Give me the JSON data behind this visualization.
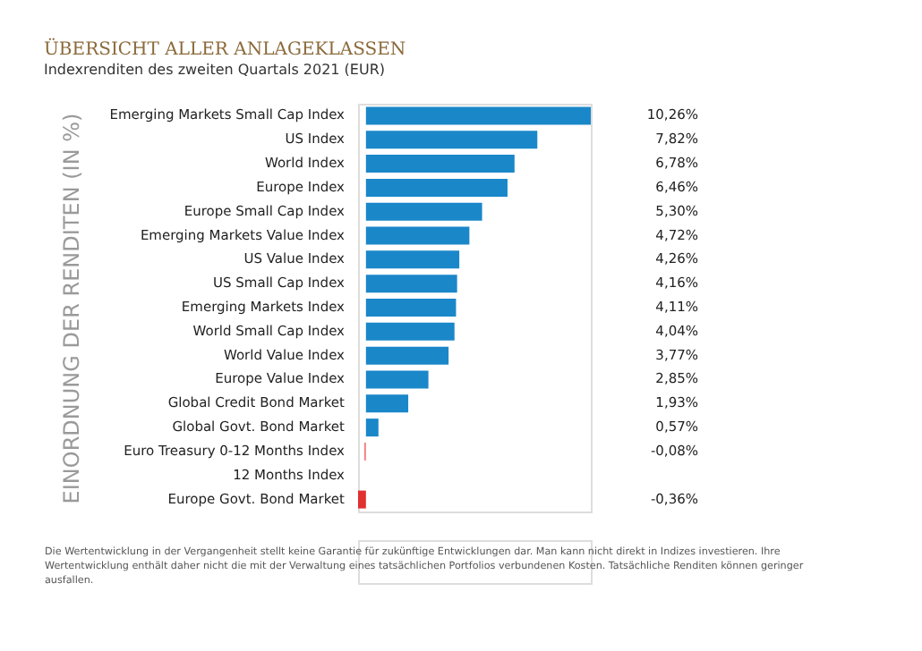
{
  "chart_data": {
    "type": "bar",
    "orientation": "horizontal",
    "title": "ÜBERSICHT ALLER ANLAGEKLASSEN",
    "subtitle": "Indexrenditen des zweiten Quartals 2021 (EUR)",
    "ylabel": "EINORDNUNG DER RENDITEN (IN %)",
    "categories": [
      "Emerging Markets Small Cap Index",
      "US Index",
      "World Index",
      "Europe Index",
      "Europe Small Cap Index",
      "Emerging Markets Value Index",
      "US Value Index",
      "US Small Cap Index",
      "Emerging Markets Index",
      "World Small Cap Index",
      "World Value Index",
      "Europe Value Index",
      "Global Credit Bond Market",
      "Global Govt. Bond Market",
      "Euro Treasury 0-12 Months Index",
      "12 Months Index",
      "Europe Govt. Bond Market"
    ],
    "values": [
      10.26,
      7.82,
      6.78,
      6.46,
      5.3,
      4.72,
      4.26,
      4.16,
      4.11,
      4.04,
      3.77,
      2.85,
      1.93,
      0.57,
      -0.08,
      null,
      -0.36
    ],
    "value_labels": [
      "10,26%",
      "7,82%",
      "6,78%",
      "6,46%",
      "5,30%",
      "4,72%",
      "4,26%",
      "4,16%",
      "4,11%",
      "4,04%",
      "3,77%",
      "2,85%",
      "1,93%",
      "0,57%",
      "-0,08%",
      null,
      "-0,36%"
    ],
    "colors": [
      "#1a87c9",
      "#1a87c9",
      "#1a87c9",
      "#1a87c9",
      "#1a87c9",
      "#1a87c9",
      "#1a87c9",
      "#1a87c9",
      "#1a87c9",
      "#1a87c9",
      "#1a87c9",
      "#1a87c9",
      "#1a87c9",
      "#1a87c9",
      "#f08080",
      "#e03030",
      "#e03030"
    ],
    "annotations": [
      "Die Wertentwicklung in der Vergangenheit stellt keine Garantie für zukünftige Entwicklungen dar. Man kann nicht direkt in Indizes investieren. Ihre Wertentwicklung enthält daher nicht die mit der Verwaltung eines tatsächlichen Portfolios verbundenen Kosten. Tatsächliche Renditen können geringer ausfallen."
    ],
    "grid": false
  }
}
